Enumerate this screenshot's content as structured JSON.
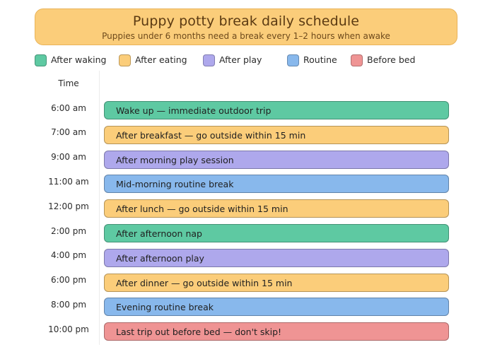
{
  "header": {
    "title": "Puppy potty break daily schedule",
    "subtitle": "Puppies under 6 months need a break every 1–2 hours when awake"
  },
  "legend": [
    {
      "label": "After waking",
      "color": "#5ec9a2"
    },
    {
      "label": "After eating",
      "color": "#fbcd7a"
    },
    {
      "label": "After play",
      "color": "#aea8ec"
    },
    {
      "label": "Routine",
      "color": "#88b8ec"
    },
    {
      "label": "Before bed",
      "color": "#ef9494"
    }
  ],
  "time_header": "Time",
  "events": [
    {
      "time": "6:00 am",
      "label": "Wake up — immediate outdoor trip",
      "category": "After waking"
    },
    {
      "time": "7:00 am",
      "label": "After breakfast — go outside within 15 min",
      "category": "After eating"
    },
    {
      "time": "9:00 am",
      "label": "After morning play session",
      "category": "After play"
    },
    {
      "time": "11:00 am",
      "label": "Mid-morning routine break",
      "category": "Routine"
    },
    {
      "time": "12:00 pm",
      "label": "After lunch — go outside within 15 min",
      "category": "After eating"
    },
    {
      "time": "2:00 pm",
      "label": "After afternoon nap",
      "category": "After waking"
    },
    {
      "time": "4:00 pm",
      "label": "After afternoon play",
      "category": "After play"
    },
    {
      "time": "6:00 pm",
      "label": "After dinner — go outside within 15 min",
      "category": "After eating"
    },
    {
      "time": "8:00 pm",
      "label": "Evening routine break",
      "category": "Routine"
    },
    {
      "time": "10:00 pm",
      "label": "Last trip out before bed — don't skip!",
      "category": "Before bed"
    }
  ]
}
